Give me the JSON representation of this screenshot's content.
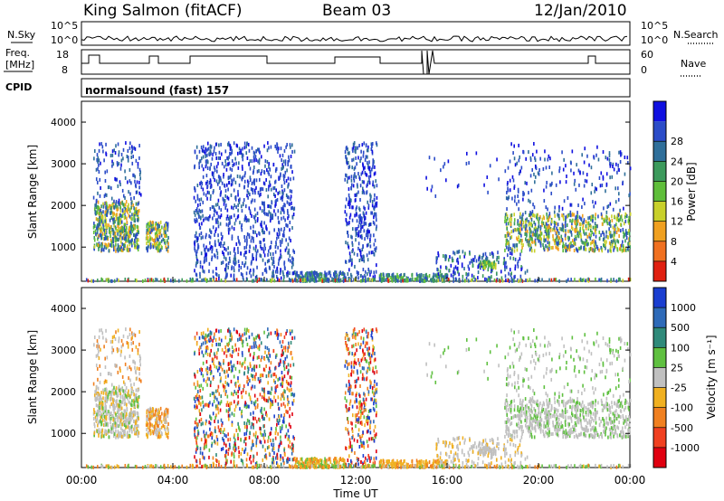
{
  "header": {
    "station": "King Salmon (fitACF)",
    "beam": "Beam 03",
    "date": "12/Jan/2010"
  },
  "top_strip": {
    "nsky_label": "N.Sky",
    "nsearch_label": "N.Search",
    "freq_label_1": "Freq.",
    "freq_label_2": "[MHz]",
    "nave_label": "Nave",
    "cpid_label": "CPID",
    "cpid_text": "normalsound (fast) 157",
    "left_ticks_top": [
      "10^5",
      "10^0"
    ],
    "right_ticks_top": [
      "10^5",
      "10^0"
    ],
    "left_ticks_freq": [
      "18",
      "8"
    ],
    "right_ticks_nave": [
      "60",
      "0"
    ]
  },
  "chart_data": [
    {
      "type": "heatmap",
      "name": "power",
      "ylabel": "Slant Range [km]",
      "ylim": [
        180,
        4500
      ],
      "yticks": [
        "1000",
        "2000",
        "3000",
        "4000"
      ],
      "colorbar_label": "Power [dB]",
      "colorbar_ticks": [
        "4",
        "8",
        "12",
        "16",
        "20",
        "24",
        "28"
      ],
      "colors": [
        "#1010e0",
        "#2b4cc8",
        "#2f6f9a",
        "#3c9a5c",
        "#5fbe3a",
        "#c8d02a",
        "#f0a020",
        "#f07020",
        "#e02010"
      ]
    },
    {
      "type": "heatmap",
      "name": "velocity",
      "ylabel": "Slant Range [km]",
      "ylim": [
        180,
        4500
      ],
      "yticks": [
        "1000",
        "2000",
        "3000",
        "4000"
      ],
      "xlabel": "Time UT",
      "xticks": [
        "00:00",
        "04:00",
        "08:00",
        "12:00",
        "16:00",
        "20:00",
        "00:00"
      ],
      "colorbar_label": "Velocity [m s⁻¹]",
      "colorbar_ticks": [
        "1000",
        "500",
        "100",
        "25",
        "-25",
        "-100",
        "-500",
        "-1000"
      ],
      "colors": [
        "#1a3ed0",
        "#2e6ab8",
        "#2f8a7a",
        "#5fc040",
        "#c0c0c0",
        "#f0b020",
        "#f08020",
        "#f04020",
        "#e00010"
      ]
    }
  ]
}
